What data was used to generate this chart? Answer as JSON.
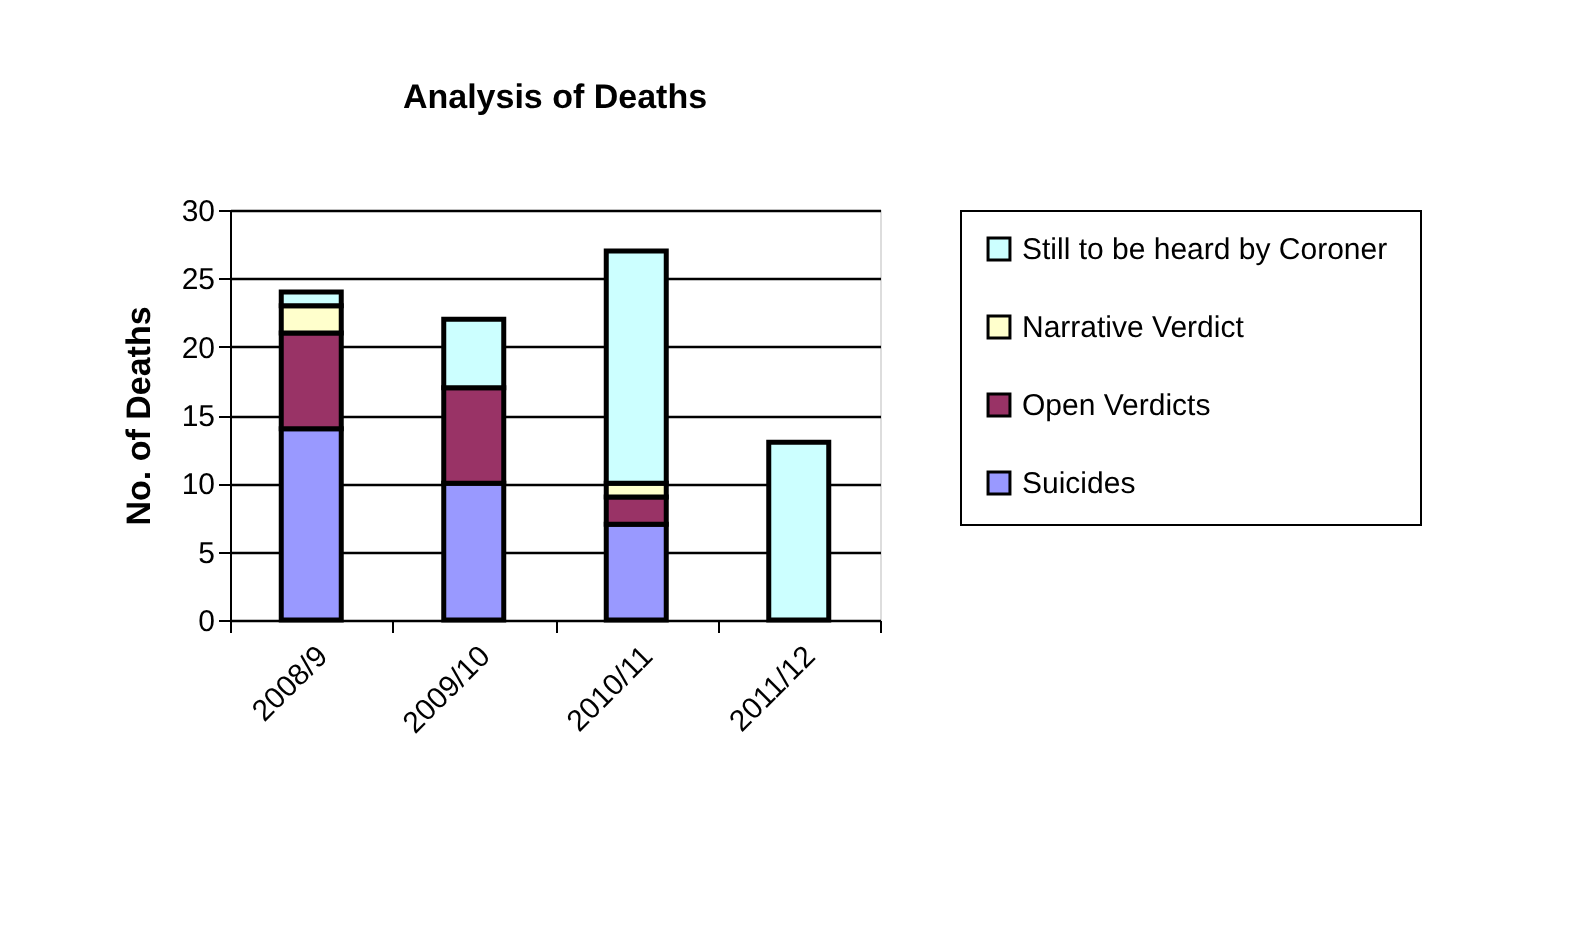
{
  "chart_data": {
    "type": "bar",
    "title": "Analysis of Deaths",
    "ylabel": "No. of Deaths",
    "categories": [
      "2008/9",
      "2009/10",
      "2010/11",
      "2011/12"
    ],
    "stacked": true,
    "series": [
      {
        "name": "Suicides",
        "color": "#9999ff",
        "values": [
          14,
          10,
          7,
          null
        ]
      },
      {
        "name": "Open Verdicts",
        "color": "#993366",
        "values": [
          7,
          7,
          2,
          null
        ]
      },
      {
        "name": "Narrative Verdict",
        "color": "#ffffcc",
        "values": [
          2,
          null,
          1,
          null
        ]
      },
      {
        "name": "Still to be heard  by Coroner",
        "color": "#ccffff",
        "values": [
          1,
          5,
          17,
          13
        ]
      }
    ],
    "ylim": [
      0,
      30
    ],
    "yticks": [
      0,
      5,
      10,
      15,
      20,
      25,
      30
    ],
    "grid": "y",
    "legend": "right"
  }
}
